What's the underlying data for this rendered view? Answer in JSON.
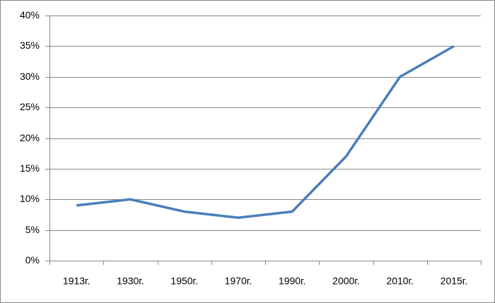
{
  "chart_data": {
    "type": "line",
    "categories": [
      "1913г.",
      "1930г.",
      "1950г.",
      "1970г.",
      "1990г.",
      "2000г.",
      "2010г.",
      "2015г."
    ],
    "series": [
      {
        "color": "#4a7ebb",
        "values": [
          9,
          10,
          8,
          7,
          8,
          17,
          30,
          35
        ]
      }
    ],
    "ylim": [
      0,
      40
    ],
    "yticks": [
      {
        "value": 0,
        "label": "0%"
      },
      {
        "value": 5,
        "label": "5%"
      },
      {
        "value": 10,
        "label": "10%"
      },
      {
        "value": 15,
        "label": "15%"
      },
      {
        "value": 20,
        "label": "20%"
      },
      {
        "value": 25,
        "label": "25%"
      },
      {
        "value": 30,
        "label": "30%"
      },
      {
        "value": 35,
        "label": "35%"
      },
      {
        "value": 40,
        "label": "40%"
      }
    ],
    "grid": true
  }
}
